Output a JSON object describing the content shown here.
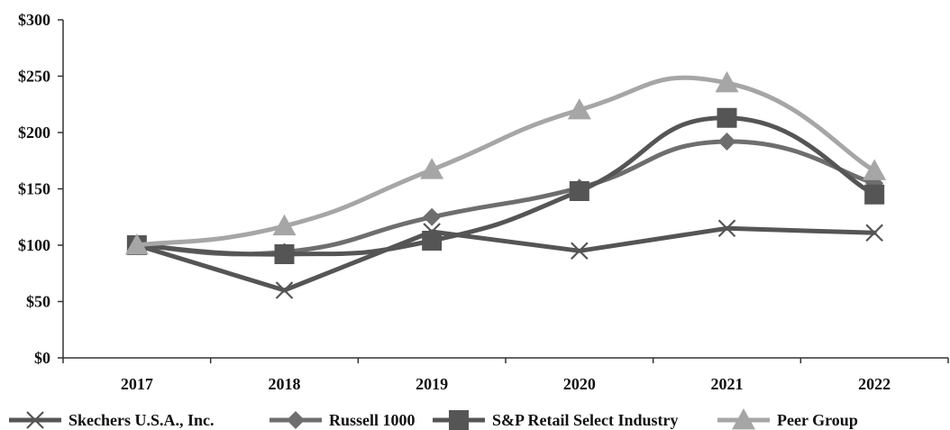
{
  "chart_data": {
    "type": "line",
    "x": [
      "2017",
      "2018",
      "2019",
      "2020",
      "2021",
      "2022"
    ],
    "ylim": [
      0,
      300
    ],
    "yticks": [
      0,
      50,
      100,
      150,
      200,
      250,
      300
    ],
    "ytick_labels": [
      "$0",
      "$50",
      "$100",
      "$150",
      "$200",
      "$250",
      "$300"
    ],
    "grid": false,
    "legend_position": "bottom",
    "series": [
      {
        "name": "Skechers U.S.A., Inc.",
        "values": [
          100,
          60,
          112,
          95,
          115,
          111
        ],
        "color": "#555555",
        "marker": "x-icon",
        "smooth": false
      },
      {
        "name": "Russell 1000",
        "values": [
          100,
          94,
          125,
          151,
          192,
          155
        ],
        "color": "#6e6e6e",
        "marker": "diamond-icon",
        "smooth": true
      },
      {
        "name": "S&P Retail Select Industry",
        "values": [
          100,
          92,
          104,
          148,
          213,
          145
        ],
        "color": "#555555",
        "marker": "square-icon",
        "smooth": true
      },
      {
        "name": "Peer Group",
        "values": [
          100,
          117,
          167,
          220,
          244,
          166
        ],
        "color": "#a6a6a6",
        "marker": "triangle-icon",
        "smooth": true
      }
    ]
  }
}
